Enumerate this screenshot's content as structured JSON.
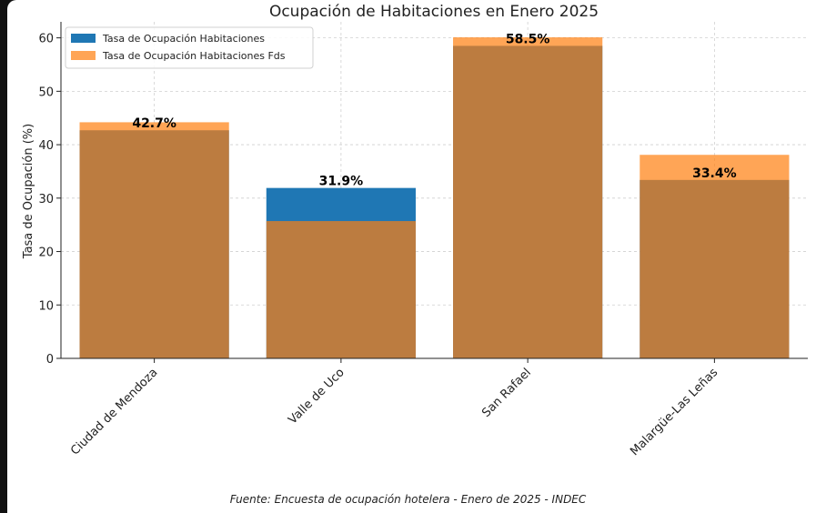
{
  "chart_data": {
    "type": "bar",
    "title": "Ocupación de Habitaciones en Enero 2025",
    "xlabel": "",
    "ylabel": "Tasa de Ocupación (%)",
    "ylim": [
      0,
      63
    ],
    "yticks": [
      0,
      10,
      20,
      30,
      40,
      50,
      60
    ],
    "categories": [
      "Ciudad de Mendoza",
      "Valle de Uco",
      "San Rafael",
      "Malargüe-Las Leñas"
    ],
    "series": [
      {
        "name": "Tasa de Ocupación Habitaciones",
        "color": "#1f77b4",
        "values": [
          42.7,
          31.9,
          58.5,
          33.4
        ]
      },
      {
        "name": "Tasa de Ocupación Habitaciones Fds",
        "color": "#ff7f0e",
        "values": [
          44.2,
          25.7,
          60.1,
          38.1
        ]
      }
    ],
    "data_labels": [
      "42.7%",
      "31.9%",
      "58.5%",
      "33.4%"
    ],
    "legend": "top-left",
    "grid": true
  },
  "source": "Fuente: Encuesta de ocupación hotelera - Enero de 2025 - INDEC"
}
